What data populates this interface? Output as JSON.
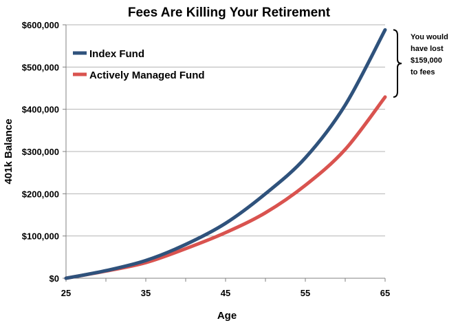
{
  "chart_data": {
    "type": "line",
    "title": "Fees Are Killing Your Retirement",
    "xlabel": "Age",
    "ylabel": "401k Balance",
    "xlim": [
      25,
      65
    ],
    "ylim": [
      0,
      600000
    ],
    "xticks": [
      25,
      35,
      45,
      55,
      65
    ],
    "yticks": [
      0,
      100000,
      200000,
      300000,
      400000,
      500000,
      600000
    ],
    "xtick_labels": [
      "25",
      "35",
      "45",
      "55",
      "65"
    ],
    "ytick_labels": [
      "$0",
      "$100,000",
      "$200,000",
      "$300,000",
      "$400,000",
      "$500,000",
      "$600,000"
    ],
    "grid": "horizontal",
    "legend": "top-left",
    "x": [
      25,
      30,
      35,
      40,
      45,
      50,
      55,
      60,
      65
    ],
    "series": [
      {
        "name": "Index Fund",
        "color": "#2f527c",
        "values": [
          0,
          18000,
          42000,
          80000,
          130000,
          200000,
          285000,
          410000,
          588000
        ]
      },
      {
        "name": "Actively Managed Fund",
        "color": "#d9534f",
        "values": [
          0,
          17000,
          37000,
          70000,
          108000,
          155000,
          220000,
          305000,
          429000
        ]
      }
    ],
    "annotation": {
      "lines": [
        "You would",
        "have lost",
        "$159,000",
        "to fees"
      ],
      "range": [
        429000,
        588000
      ]
    }
  }
}
